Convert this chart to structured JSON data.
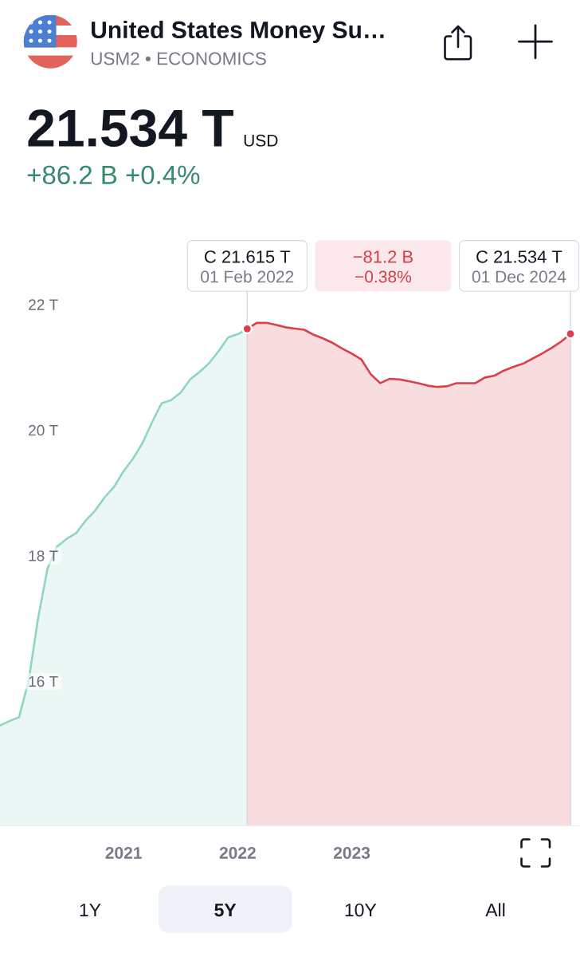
{
  "chart_data": {
    "type": "area",
    "title": "United States Money Su…",
    "subtitle": "USM2 • ECONOMICS",
    "annotations": [
      "21.534 T",
      "USD",
      "+86.2 B +0.4%",
      "C 21.615 T",
      "01 Feb 2022",
      "−81.2 B",
      "−0.38%",
      "C 21.534 T",
      "01 Dec 2024",
      "1Y",
      "5Y",
      "10Y",
      "All"
    ],
    "series": [
      {
        "color": "#8fd5c5",
        "x": [
          "2019-12",
          "2020-01",
          "2020-02",
          "2020-03",
          "2020-04",
          "2020-05",
          "2020-06",
          "2020-07",
          "2020-08",
          "2020-09",
          "2020-10",
          "2020-11",
          "2020-12",
          "2021-01",
          "2021-02",
          "2021-03",
          "2021-04",
          "2021-05",
          "2021-06",
          "2021-07",
          "2021-08",
          "2021-09",
          "2021-10",
          "2021-11",
          "2021-12",
          "2022-01",
          "2022-02"
        ],
        "values": [
          15.3,
          15.37,
          15.43,
          16.0,
          17.0,
          17.8,
          18.15,
          18.27,
          18.36,
          18.56,
          18.72,
          18.93,
          19.1,
          19.35,
          19.55,
          19.8,
          20.13,
          20.43,
          20.48,
          20.6,
          20.81,
          20.93,
          21.07,
          21.26,
          21.48,
          21.53,
          21.615
        ]
      },
      {
        "color": "#d9404c",
        "x": [
          "2022-02",
          "2022-03",
          "2022-04",
          "2022-05",
          "2022-06",
          "2022-07",
          "2022-08",
          "2022-09",
          "2022-10",
          "2022-11",
          "2022-12",
          "2023-01",
          "2023-02",
          "2023-03",
          "2023-04",
          "2023-05",
          "2023-06",
          "2023-07",
          "2023-08",
          "2023-09",
          "2023-10",
          "2023-11",
          "2023-12",
          "2024-01",
          "2024-02",
          "2024-03",
          "2024-04",
          "2024-05",
          "2024-06",
          "2024-07",
          "2024-08",
          "2024-09",
          "2024-10",
          "2024-11",
          "2024-12"
        ],
        "values": [
          21.615,
          21.71,
          21.71,
          21.68,
          21.64,
          21.62,
          21.6,
          21.52,
          21.46,
          21.39,
          21.3,
          21.22,
          21.13,
          20.89,
          20.75,
          20.82,
          20.81,
          20.78,
          20.75,
          20.71,
          20.69,
          20.7,
          20.75,
          20.75,
          20.75,
          20.84,
          20.87,
          20.95,
          21.01,
          21.06,
          21.14,
          21.22,
          21.31,
          21.41,
          21.534
        ]
      },
      {
        "type": "scatter",
        "marker": "circle",
        "color": "#d9404c",
        "x": [
          "2022-02",
          "2024-12"
        ],
        "values": [
          21.615,
          21.534
        ]
      }
    ],
    "xlim": [
      "2019-12",
      "2025-01"
    ],
    "ylim": [
      13.7,
      23
    ],
    "xticks": [
      {
        "value": "2021-01",
        "label": "2021"
      },
      {
        "value": "2022-01",
        "label": "2022"
      },
      {
        "value": "2023-01",
        "label": "2023"
      }
    ],
    "yticks": [
      {
        "value": 16,
        "label": "16 T"
      },
      {
        "value": 18,
        "label": "18 T"
      },
      {
        "value": 20,
        "label": "20 T"
      },
      {
        "value": 22,
        "label": "22 T"
      }
    ],
    "ref_lines": [
      {
        "axis": "x",
        "value": "2022-02",
        "color": "#d1d4dc"
      },
      {
        "axis": "x",
        "value": "2024-12",
        "color": "#d1d4dc"
      }
    ]
  }
}
